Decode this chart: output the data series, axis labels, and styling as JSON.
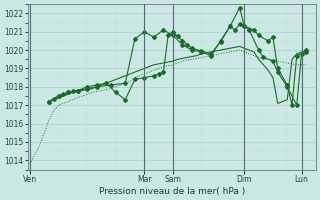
{
  "bg_color": "#cce8e4",
  "grid_color_major": "#b0d0cc",
  "grid_color_minor": "#c8e4e0",
  "line_color": "#1a6b2a",
  "xlabel": "Pression niveau de la mer( hPa )",
  "ylim": [
    1013.5,
    1022.5
  ],
  "yticks": [
    1014,
    1015,
    1016,
    1017,
    1018,
    1019,
    1020,
    1021,
    1022
  ],
  "day_labels": [
    "Ven",
    "Mar",
    "Sam",
    "Dim",
    "Lun"
  ],
  "day_positions": [
    0,
    48,
    60,
    90,
    114
  ],
  "xlim": [
    -1,
    120
  ],
  "series_dotted_x": [
    0,
    2,
    4,
    6,
    8,
    10,
    12,
    14,
    16,
    18,
    20,
    22,
    24,
    26,
    28,
    30,
    32,
    34,
    36,
    38,
    40,
    42,
    44,
    46,
    48,
    50,
    52,
    54,
    56,
    58,
    60,
    62,
    64,
    66,
    68,
    70,
    72,
    74,
    76,
    78,
    80,
    82,
    84,
    86,
    88,
    90,
    92,
    94,
    96,
    98,
    100,
    102,
    104,
    106,
    108,
    110,
    112,
    114,
    116
  ],
  "series_dotted_y": [
    1013.8,
    1014.3,
    1014.8,
    1015.5,
    1016.2,
    1016.7,
    1017.0,
    1017.1,
    1017.2,
    1017.3,
    1017.4,
    1017.5,
    1017.6,
    1017.7,
    1017.75,
    1017.8,
    1017.85,
    1017.9,
    1018.0,
    1018.1,
    1018.2,
    1018.3,
    1018.5,
    1018.6,
    1018.7,
    1018.8,
    1018.9,
    1019.0,
    1019.1,
    1019.15,
    1019.2,
    1019.3,
    1019.4,
    1019.45,
    1019.5,
    1019.55,
    1019.6,
    1019.65,
    1019.7,
    1019.75,
    1019.8,
    1019.85,
    1019.9,
    1019.95,
    1020.0,
    1019.9,
    1019.8,
    1019.7,
    1019.6,
    1019.55,
    1019.5,
    1019.45,
    1019.4,
    1019.35,
    1019.3,
    1019.25,
    1019.2,
    1019.2,
    1019.2
  ],
  "series1_x": [
    8,
    10,
    12,
    14,
    16,
    18,
    20,
    22,
    24,
    26,
    28,
    30,
    32,
    34,
    36,
    38,
    40,
    42,
    44,
    46,
    48,
    50,
    52,
    56,
    58,
    60,
    62,
    64,
    66,
    68,
    70,
    72,
    74,
    76,
    78,
    80,
    82,
    84,
    86,
    88,
    90,
    92,
    94,
    96,
    98,
    100,
    102,
    104,
    106,
    108,
    110,
    112,
    114,
    116
  ],
  "series1_y": [
    1017.2,
    1017.3,
    1017.4,
    1017.5,
    1017.6,
    1017.7,
    1017.75,
    1017.8,
    1017.85,
    1017.9,
    1018.0,
    1018.1,
    1018.2,
    1018.3,
    1018.4,
    1018.5,
    1018.6,
    1018.7,
    1018.8,
    1018.9,
    1019.0,
    1019.1,
    1019.2,
    1019.3,
    1019.35,
    1019.4,
    1019.5,
    1019.55,
    1019.6,
    1019.65,
    1019.7,
    1019.8,
    1019.85,
    1019.9,
    1019.95,
    1020.0,
    1020.05,
    1020.1,
    1020.15,
    1020.2,
    1020.1,
    1020.0,
    1019.9,
    1019.5,
    1019.2,
    1018.9,
    1018.5,
    1017.1,
    1017.2,
    1017.3,
    1019.5,
    1019.8,
    1019.9,
    1019.95
  ],
  "series2_x": [
    8,
    10,
    12,
    14,
    16,
    18,
    20,
    24,
    28,
    34,
    40,
    44,
    48,
    52,
    56,
    60,
    64,
    68,
    72,
    76,
    80,
    84,
    88,
    90,
    94,
    96,
    100,
    102,
    104,
    108,
    110,
    112,
    116
  ],
  "series2_y": [
    1017.2,
    1017.35,
    1017.5,
    1017.6,
    1017.7,
    1017.75,
    1017.8,
    1017.9,
    1018.0,
    1018.1,
    1018.2,
    1020.6,
    1021.0,
    1020.7,
    1021.1,
    1020.8,
    1020.3,
    1020.0,
    1019.9,
    1019.7,
    1020.5,
    1021.3,
    1022.3,
    1021.3,
    1021.1,
    1020.8,
    1020.5,
    1020.7,
    1019.0,
    1018.1,
    1017.0,
    1019.7,
    1019.9
  ],
  "series3_x": [
    8,
    12,
    16,
    20,
    24,
    28,
    32,
    36,
    40,
    44,
    48,
    52,
    54,
    56,
    58,
    60,
    62,
    64,
    66,
    68,
    72,
    76,
    80,
    84,
    86,
    88,
    90,
    92,
    96,
    98,
    102,
    104,
    108,
    112,
    114,
    116
  ],
  "series3_y": [
    1017.2,
    1017.5,
    1017.7,
    1017.8,
    1018.0,
    1018.1,
    1018.2,
    1017.7,
    1017.3,
    1018.4,
    1018.5,
    1018.6,
    1018.7,
    1018.8,
    1020.8,
    1021.0,
    1020.75,
    1020.5,
    1020.3,
    1020.1,
    1019.95,
    1019.8,
    1020.45,
    1021.3,
    1021.1,
    1021.4,
    1021.3,
    1021.1,
    1020.0,
    1019.6,
    1019.4,
    1018.8,
    1018.0,
    1017.0,
    1019.8,
    1020.0
  ]
}
